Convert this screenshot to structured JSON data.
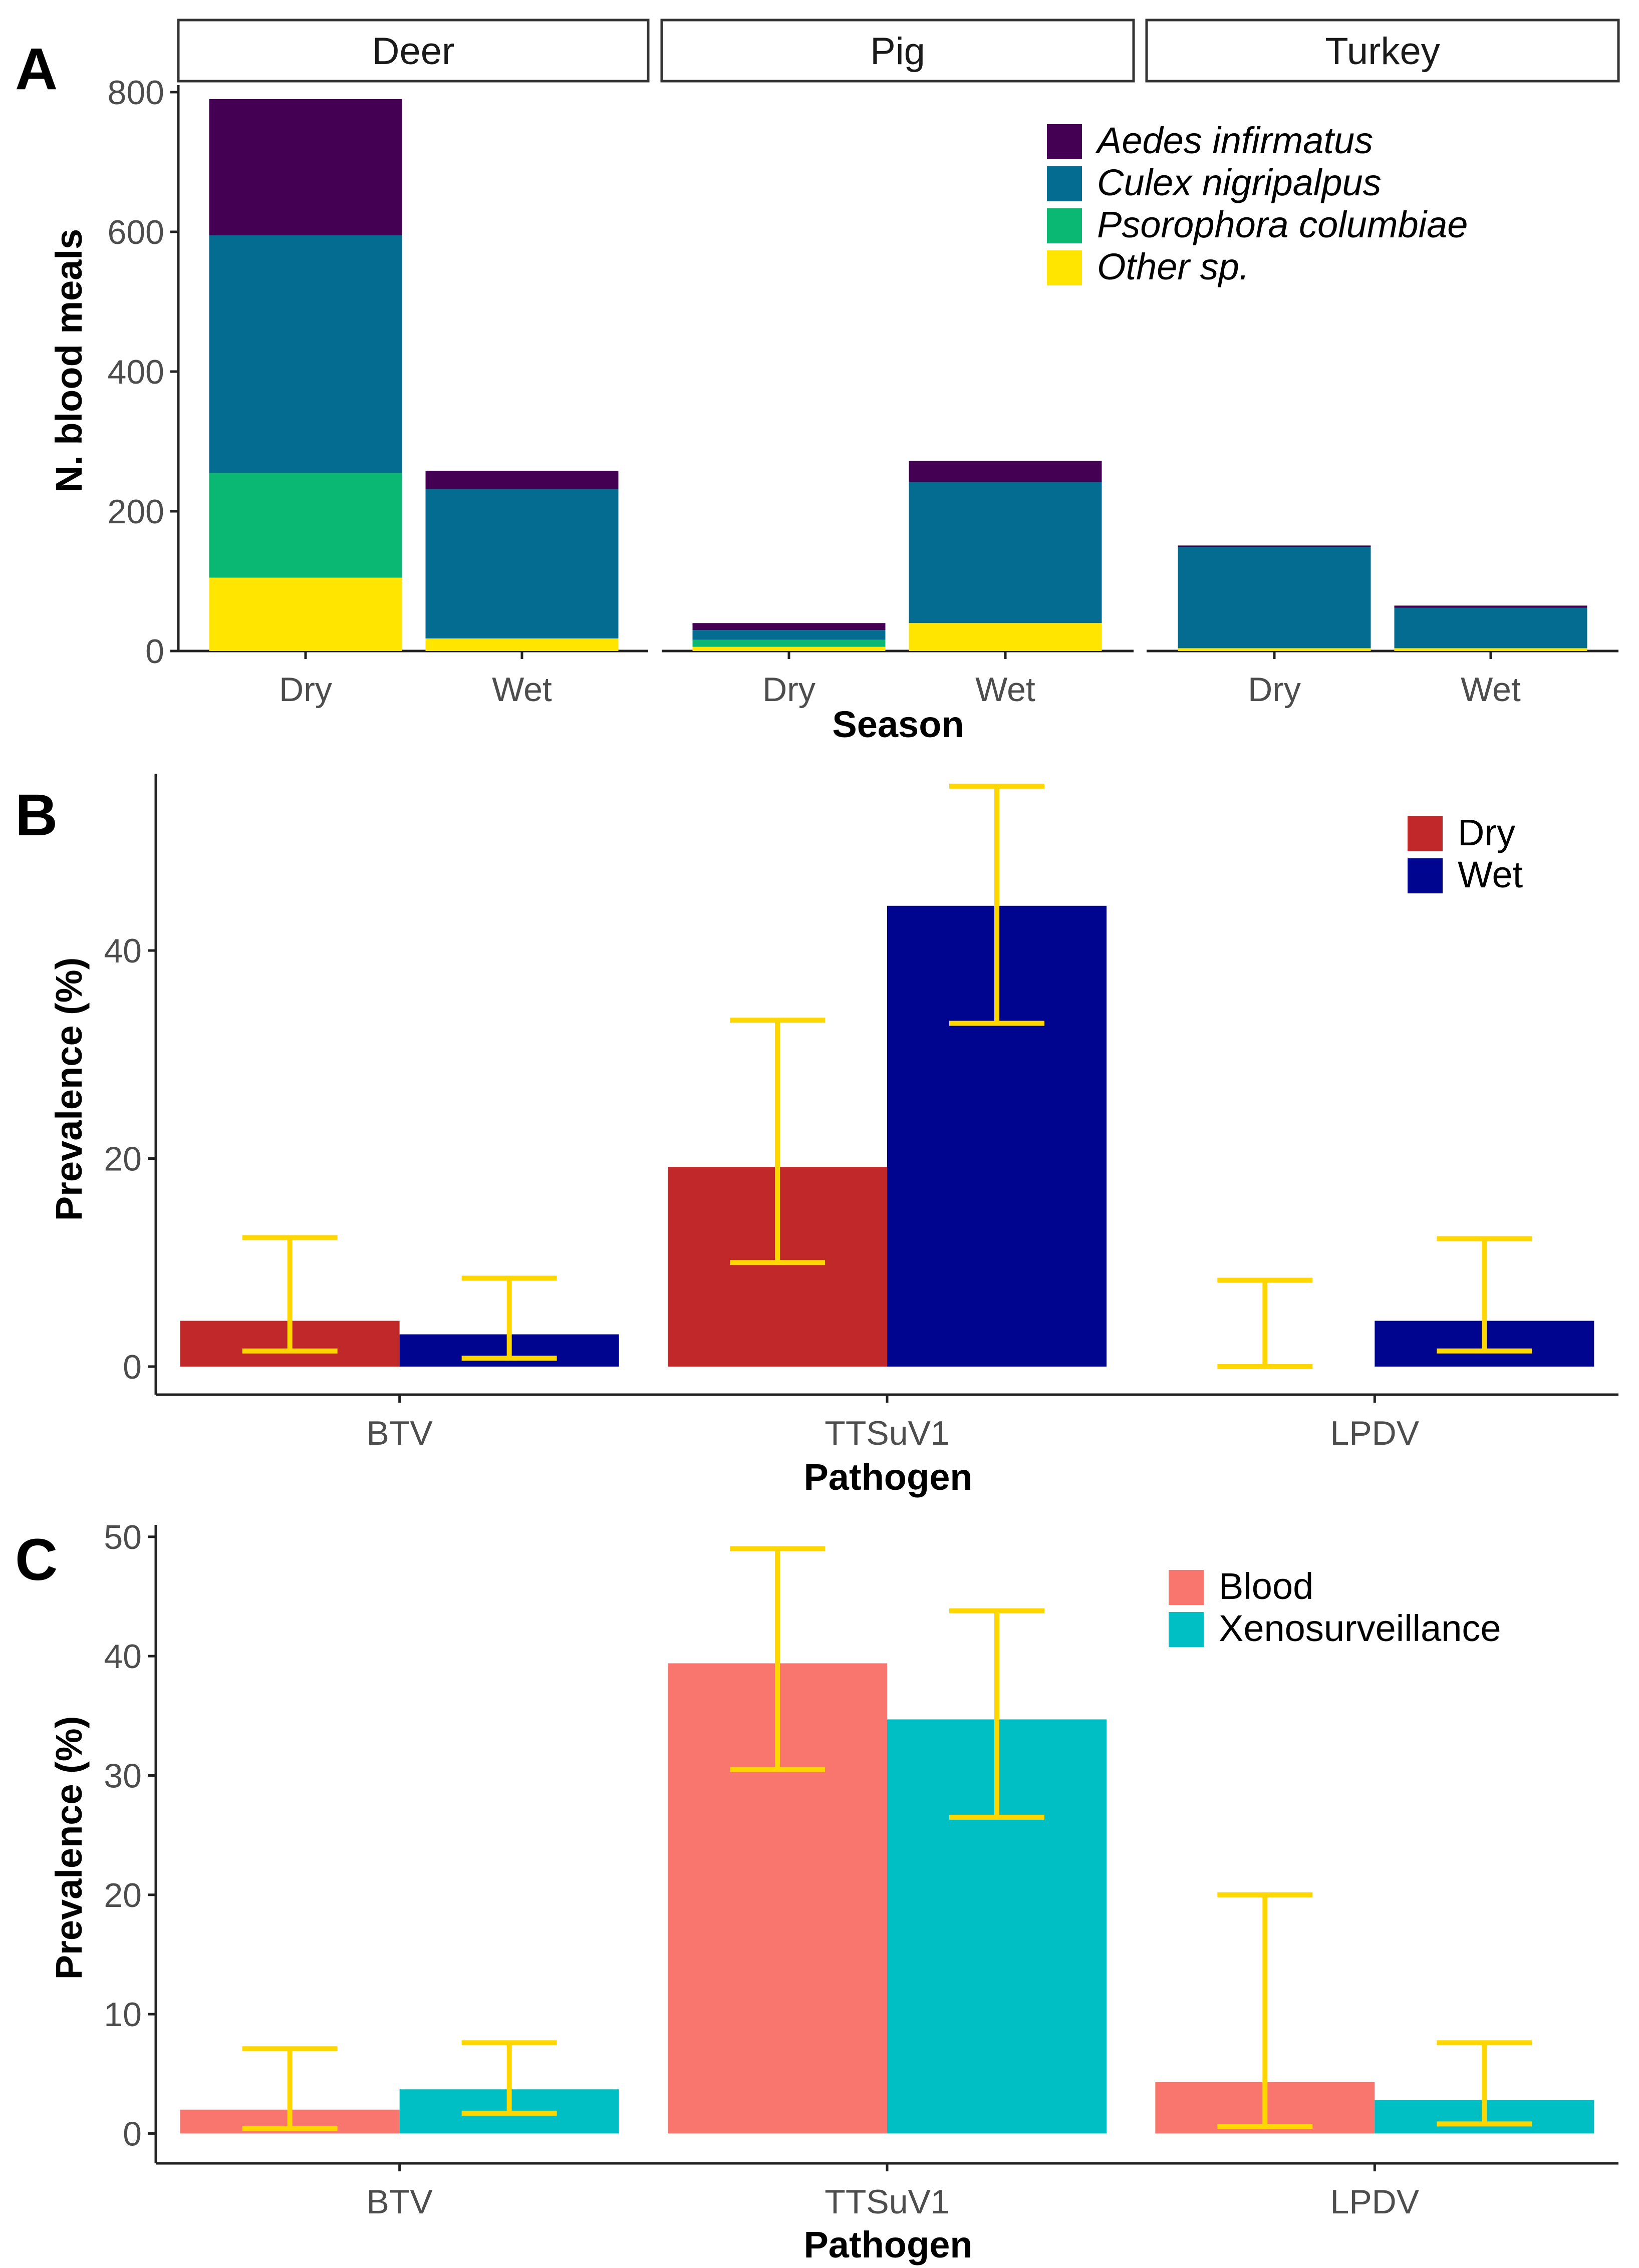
{
  "panel_labels": [
    "A",
    "B",
    "C"
  ],
  "colors": {
    "aedes": "#440154",
    "culex": "#046b91",
    "psorophora": "#0ab874",
    "other": "#ffe500",
    "dry": "#c0282a",
    "wet": "#00058f",
    "blood": "#f8766d",
    "xeno": "#00bfc4",
    "errorbar": "#ffd700"
  },
  "chart_data": [
    {
      "id": "A",
      "type": "bar",
      "stacked": true,
      "facets": [
        "Deer",
        "Pig",
        "Turkey"
      ],
      "categories": [
        "Dry",
        "Wet"
      ],
      "xlabel": "Season",
      "ylabel": "N. blood meals",
      "ylim": [
        0,
        810
      ],
      "yticks": [
        0,
        200,
        400,
        600,
        800
      ],
      "legend_position": "top-right",
      "series": [
        {
          "name": "Other sp.",
          "color_key": "other",
          "values": {
            "Deer": [
              105,
              18
            ],
            "Pig": [
              6,
              40
            ],
            "Turkey": [
              4,
              4
            ]
          }
        },
        {
          "name": "Psorophora columbiae",
          "color_key": "psorophora",
          "values": {
            "Deer": [
              150,
              0
            ],
            "Pig": [
              10,
              0
            ],
            "Turkey": [
              0,
              0
            ]
          }
        },
        {
          "name": "Culex nigripalpus",
          "color_key": "culex",
          "values": {
            "Deer": [
              340,
              214
            ],
            "Pig": [
              14,
              202
            ],
            "Turkey": [
              145,
              58
            ]
          }
        },
        {
          "name": "Aedes infirmatus",
          "color_key": "aedes",
          "values": {
            "Deer": [
              195,
              26
            ],
            "Pig": [
              10,
              30
            ],
            "Turkey": [
              2,
              3
            ]
          }
        }
      ],
      "legend_order": [
        "Aedes infirmatus",
        "Culex nigripalpus",
        "Psorophora columbiae",
        "Other sp."
      ]
    },
    {
      "id": "B",
      "type": "bar",
      "grouped": true,
      "categories": [
        "BTV",
        "TTSuV1",
        "LPDV"
      ],
      "xlabel": "Pathogen",
      "ylabel": "Prevalence (%)",
      "ylim": [
        -2.7,
        57
      ],
      "yticks": [
        0,
        20,
        40
      ],
      "legend_position": "top-right",
      "series": [
        {
          "name": "Dry",
          "color_key": "dry",
          "values": [
            4.4,
            19.2,
            0
          ],
          "lower": [
            1.5,
            10.0,
            0
          ],
          "upper": [
            12.4,
            33.3,
            8.3
          ]
        },
        {
          "name": "Wet",
          "color_key": "wet",
          "values": [
            3.1,
            44.3,
            4.4
          ],
          "lower": [
            0.8,
            33.0,
            1.5
          ],
          "upper": [
            8.5,
            55.8,
            12.3
          ]
        }
      ]
    },
    {
      "id": "C",
      "type": "bar",
      "grouped": true,
      "categories": [
        "BTV",
        "TTSuV1",
        "LPDV"
      ],
      "xlabel": "Pathogen",
      "ylabel": "Prevalence (%)",
      "ylim": [
        -2.5,
        51
      ],
      "yticks": [
        0,
        10,
        20,
        30,
        40,
        50
      ],
      "legend_position": "top-right",
      "series": [
        {
          "name": "Blood",
          "color_key": "blood",
          "values": [
            2.0,
            39.4,
            4.3
          ],
          "lower": [
            0.4,
            30.5,
            0.6
          ],
          "upper": [
            7.1,
            49.0,
            20.0
          ]
        },
        {
          "name": "Xenosurveillance",
          "color_key": "xeno",
          "values": [
            3.7,
            34.7,
            2.8
          ],
          "lower": [
            1.7,
            26.5,
            0.8
          ],
          "upper": [
            7.6,
            43.8,
            7.6
          ]
        }
      ]
    }
  ]
}
